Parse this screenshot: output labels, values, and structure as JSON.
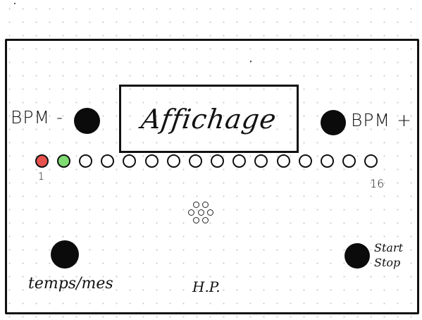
{
  "display": {
    "label": "Affichage"
  },
  "bpm_minus": {
    "label": "BPM -"
  },
  "bpm_plus": {
    "label": "BPM +"
  },
  "leds": {
    "first_label": "1",
    "last_label": "16",
    "items": [
      {
        "state": "red"
      },
      {
        "state": "green"
      },
      {
        "state": "off"
      },
      {
        "state": "off"
      },
      {
        "state": "off"
      },
      {
        "state": "off"
      },
      {
        "state": "off"
      },
      {
        "state": "off"
      },
      {
        "state": "off"
      },
      {
        "state": "off"
      },
      {
        "state": "off"
      },
      {
        "state": "off"
      },
      {
        "state": "off"
      },
      {
        "state": "off"
      },
      {
        "state": "off"
      },
      {
        "state": "off"
      }
    ]
  },
  "tempo_button": {
    "label": "temps/mes"
  },
  "speaker": {
    "label": "H.P."
  },
  "start_stop": {
    "line1": "Start",
    "line2": "Stop"
  },
  "colors": {
    "red": "#e8524e",
    "green": "#7fdc72",
    "off": "#ffffff",
    "ink": "#111111"
  }
}
